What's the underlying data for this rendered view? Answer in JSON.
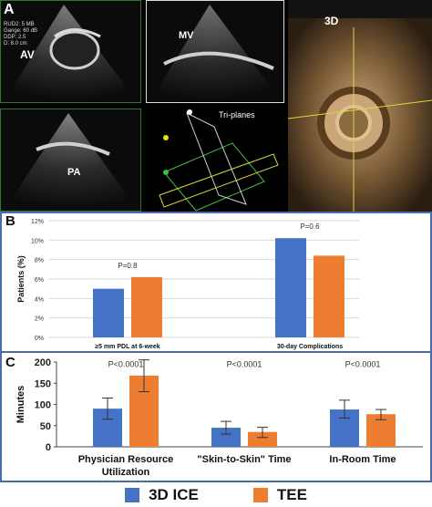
{
  "figure": {
    "panel_a": {
      "letter": "A",
      "labels": {
        "av": "AV",
        "mv": "MV",
        "pa": "PA",
        "triplanes": "Tri-planes",
        "three_d": "3D"
      },
      "overlay_text": [
        "RUD2: 5 MB",
        "Gange: 60 dB",
        "DDP: 2.5",
        "D: 8.0 cm"
      ]
    },
    "panel_b": {
      "letter": "B"
    },
    "panel_c": {
      "letter": "C"
    },
    "legend": [
      {
        "name": "3D ICE",
        "color": "#4472c4"
      },
      {
        "name": "TEE",
        "color": "#ed7d31"
      }
    ]
  },
  "chart_data": [
    {
      "type": "bar",
      "ylabel": "Patients (%)",
      "ylim": [
        0,
        12
      ],
      "yticks": [
        "0%",
        "2%",
        "4%",
        "6%",
        "8%",
        "10%",
        "12%"
      ],
      "categories": [
        "≥5 mm PDL at 6-week",
        "30-day Complications"
      ],
      "series": [
        {
          "name": "3D ICE",
          "values": [
            5.0,
            10.2
          ],
          "color": "#4472c4"
        },
        {
          "name": "TEE",
          "values": [
            6.2,
            8.4
          ],
          "color": "#ed7d31"
        }
      ],
      "annotations": [
        "P=0.8",
        "P=0.6"
      ],
      "grid": true
    },
    {
      "type": "bar",
      "ylabel": "Minutes",
      "ylim": [
        0,
        200
      ],
      "yticks": [
        "0",
        "50",
        "100",
        "150",
        "200"
      ],
      "categories": [
        "Physician Resource Utilization",
        "\"Skin-to-Skin\" Time",
        "In-Room Time"
      ],
      "category_lines": [
        [
          "Physician Resource",
          "Utilization"
        ],
        [
          "\"Skin-to-Skin\" Time"
        ],
        [
          "In-Room Time"
        ]
      ],
      "series": [
        {
          "name": "3D ICE",
          "values": [
            90,
            45,
            88
          ],
          "error": [
            [
              65,
              115
            ],
            [
              30,
              60
            ],
            [
              68,
              110
            ]
          ],
          "color": "#4472c4"
        },
        {
          "name": "TEE",
          "values": [
            168,
            35,
            77
          ],
          "error": [
            [
              130,
              205
            ],
            [
              22,
              46
            ],
            [
              64,
              88
            ]
          ],
          "color": "#ed7d31"
        }
      ],
      "annotations": [
        "P<0.0001",
        "P<0.0001",
        "P<0.0001"
      ],
      "grid": false
    }
  ]
}
